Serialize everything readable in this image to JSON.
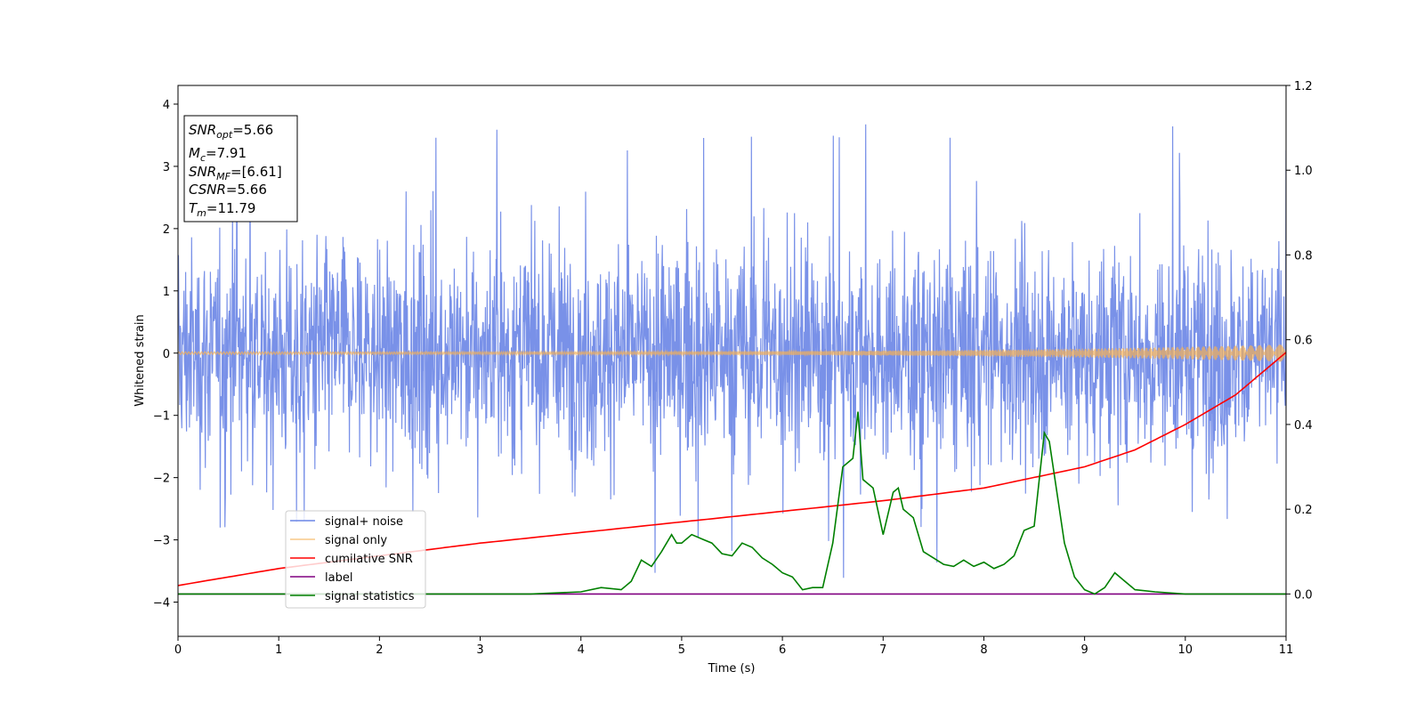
{
  "chart_data": {
    "type": "line",
    "xlabel": "Time (s)",
    "ylabel": "Whitened strain",
    "xlim": [
      0,
      11
    ],
    "ylim_left": [
      -4.55,
      4.3
    ],
    "ylim_right": [
      -0.1,
      1.2
    ],
    "x_ticks": [
      0,
      1,
      2,
      3,
      4,
      5,
      6,
      7,
      8,
      9,
      10,
      11
    ],
    "y_ticks_left": [
      -4,
      -3,
      -2,
      -1,
      0,
      1,
      2,
      3,
      4
    ],
    "y_ticks_right": [
      0.0,
      0.2,
      0.4,
      0.6,
      0.8,
      1.0,
      1.2
    ],
    "y_tick_labels_left": [
      "−4",
      "−3",
      "−2",
      "−1",
      "0",
      "1",
      "2",
      "3",
      "4"
    ],
    "y_tick_labels_right": [
      "0.0",
      "0.2",
      "0.4",
      "0.6",
      "0.8",
      "1.0",
      "1.2"
    ],
    "grid": false,
    "legend_position": "lower-left",
    "info_box": {
      "lines": [
        {
          "label": "SNR",
          "sub": "opt",
          "value": "=5.66"
        },
        {
          "label": "M",
          "sub": "c",
          "value": "=7.91"
        },
        {
          "label": "SNR",
          "sub": "MF",
          "value": "=[6.61]"
        },
        {
          "label": "CSNR",
          "sub": "",
          "value": "=5.66"
        },
        {
          "label": "T",
          "sub": "m",
          "value": "=11.79"
        }
      ]
    },
    "series": [
      {
        "name": "signal+ noise",
        "color": "#6a85e6",
        "axis": "left",
        "kind": "noise",
        "typical_amplitude": 1.9,
        "peak_amplitude": 3.8
      },
      {
        "name": "signal only",
        "color": "#f5b056",
        "axis": "left",
        "kind": "chirp",
        "amplitude_start": 0.02,
        "amplitude_end": 0.14
      },
      {
        "name": "cumilative SNR",
        "color": "#ff0000",
        "axis": "right",
        "x": [
          0,
          1,
          2,
          3,
          4,
          5,
          6,
          7,
          8,
          9,
          9.5,
          10,
          10.5,
          11
        ],
        "y": [
          0.02,
          0.06,
          0.09,
          0.12,
          0.145,
          0.17,
          0.195,
          0.22,
          0.25,
          0.3,
          0.34,
          0.4,
          0.47,
          0.57
        ]
      },
      {
        "name": "label",
        "color": "#800080",
        "axis": "right",
        "x": [
          0,
          11
        ],
        "y": [
          0.0,
          0.0
        ]
      },
      {
        "name": "signal statistics",
        "color": "#008000",
        "axis": "right",
        "x": [
          0,
          3,
          3.5,
          4,
          4.2,
          4.4,
          4.5,
          4.6,
          4.7,
          4.8,
          4.9,
          4.95,
          5.0,
          5.1,
          5.2,
          5.3,
          5.4,
          5.5,
          5.6,
          5.7,
          5.8,
          5.9,
          6.0,
          6.1,
          6.2,
          6.3,
          6.4,
          6.5,
          6.6,
          6.7,
          6.75,
          6.8,
          6.9,
          7.0,
          7.1,
          7.15,
          7.2,
          7.3,
          7.4,
          7.5,
          7.6,
          7.7,
          7.8,
          7.9,
          8.0,
          8.1,
          8.2,
          8.3,
          8.4,
          8.5,
          8.6,
          8.65,
          8.7,
          8.8,
          8.9,
          9.0,
          9.1,
          9.2,
          9.3,
          9.4,
          9.5,
          9.7,
          10.0,
          11.0
        ],
        "y": [
          0.0,
          0.0,
          0.0,
          0.005,
          0.015,
          0.01,
          0.03,
          0.08,
          0.065,
          0.1,
          0.14,
          0.12,
          0.12,
          0.14,
          0.13,
          0.12,
          0.095,
          0.09,
          0.12,
          0.11,
          0.085,
          0.07,
          0.05,
          0.04,
          0.01,
          0.015,
          0.015,
          0.12,
          0.3,
          0.32,
          0.43,
          0.27,
          0.25,
          0.14,
          0.24,
          0.25,
          0.2,
          0.18,
          0.1,
          0.085,
          0.07,
          0.065,
          0.08,
          0.065,
          0.075,
          0.06,
          0.07,
          0.09,
          0.15,
          0.16,
          0.38,
          0.36,
          0.28,
          0.12,
          0.04,
          0.01,
          0.0,
          0.015,
          0.05,
          0.03,
          0.01,
          0.005,
          0.0,
          0.0
        ]
      }
    ]
  }
}
